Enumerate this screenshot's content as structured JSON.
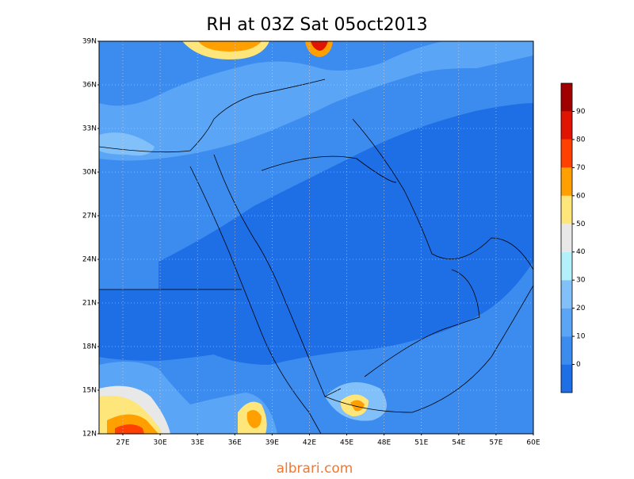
{
  "title": "RH at 03Z Sat 05oct2013",
  "lat_labels": [
    "39N",
    "36N",
    "33N",
    "30N",
    "27N",
    "24N",
    "21N",
    "18N",
    "15N",
    "12N"
  ],
  "lon_labels": [
    "27E",
    "30E",
    "33E",
    "36E",
    "39E",
    "42E",
    "45E",
    "48E",
    "51E",
    "54E",
    "57E",
    "60E"
  ],
  "colorbar": {
    "levels": [
      0,
      10,
      20,
      30,
      40,
      50,
      60,
      70,
      80,
      90
    ],
    "colors": [
      "#1e6ee6",
      "#3c8cf0",
      "#5aa5f5",
      "#82c0fa",
      "#b4f0fa",
      "#e8e8e8",
      "#ffe67a",
      "#ffa000",
      "#ff4000",
      "#e01400",
      "#a00000"
    ]
  },
  "watermark": "albrari.com"
}
